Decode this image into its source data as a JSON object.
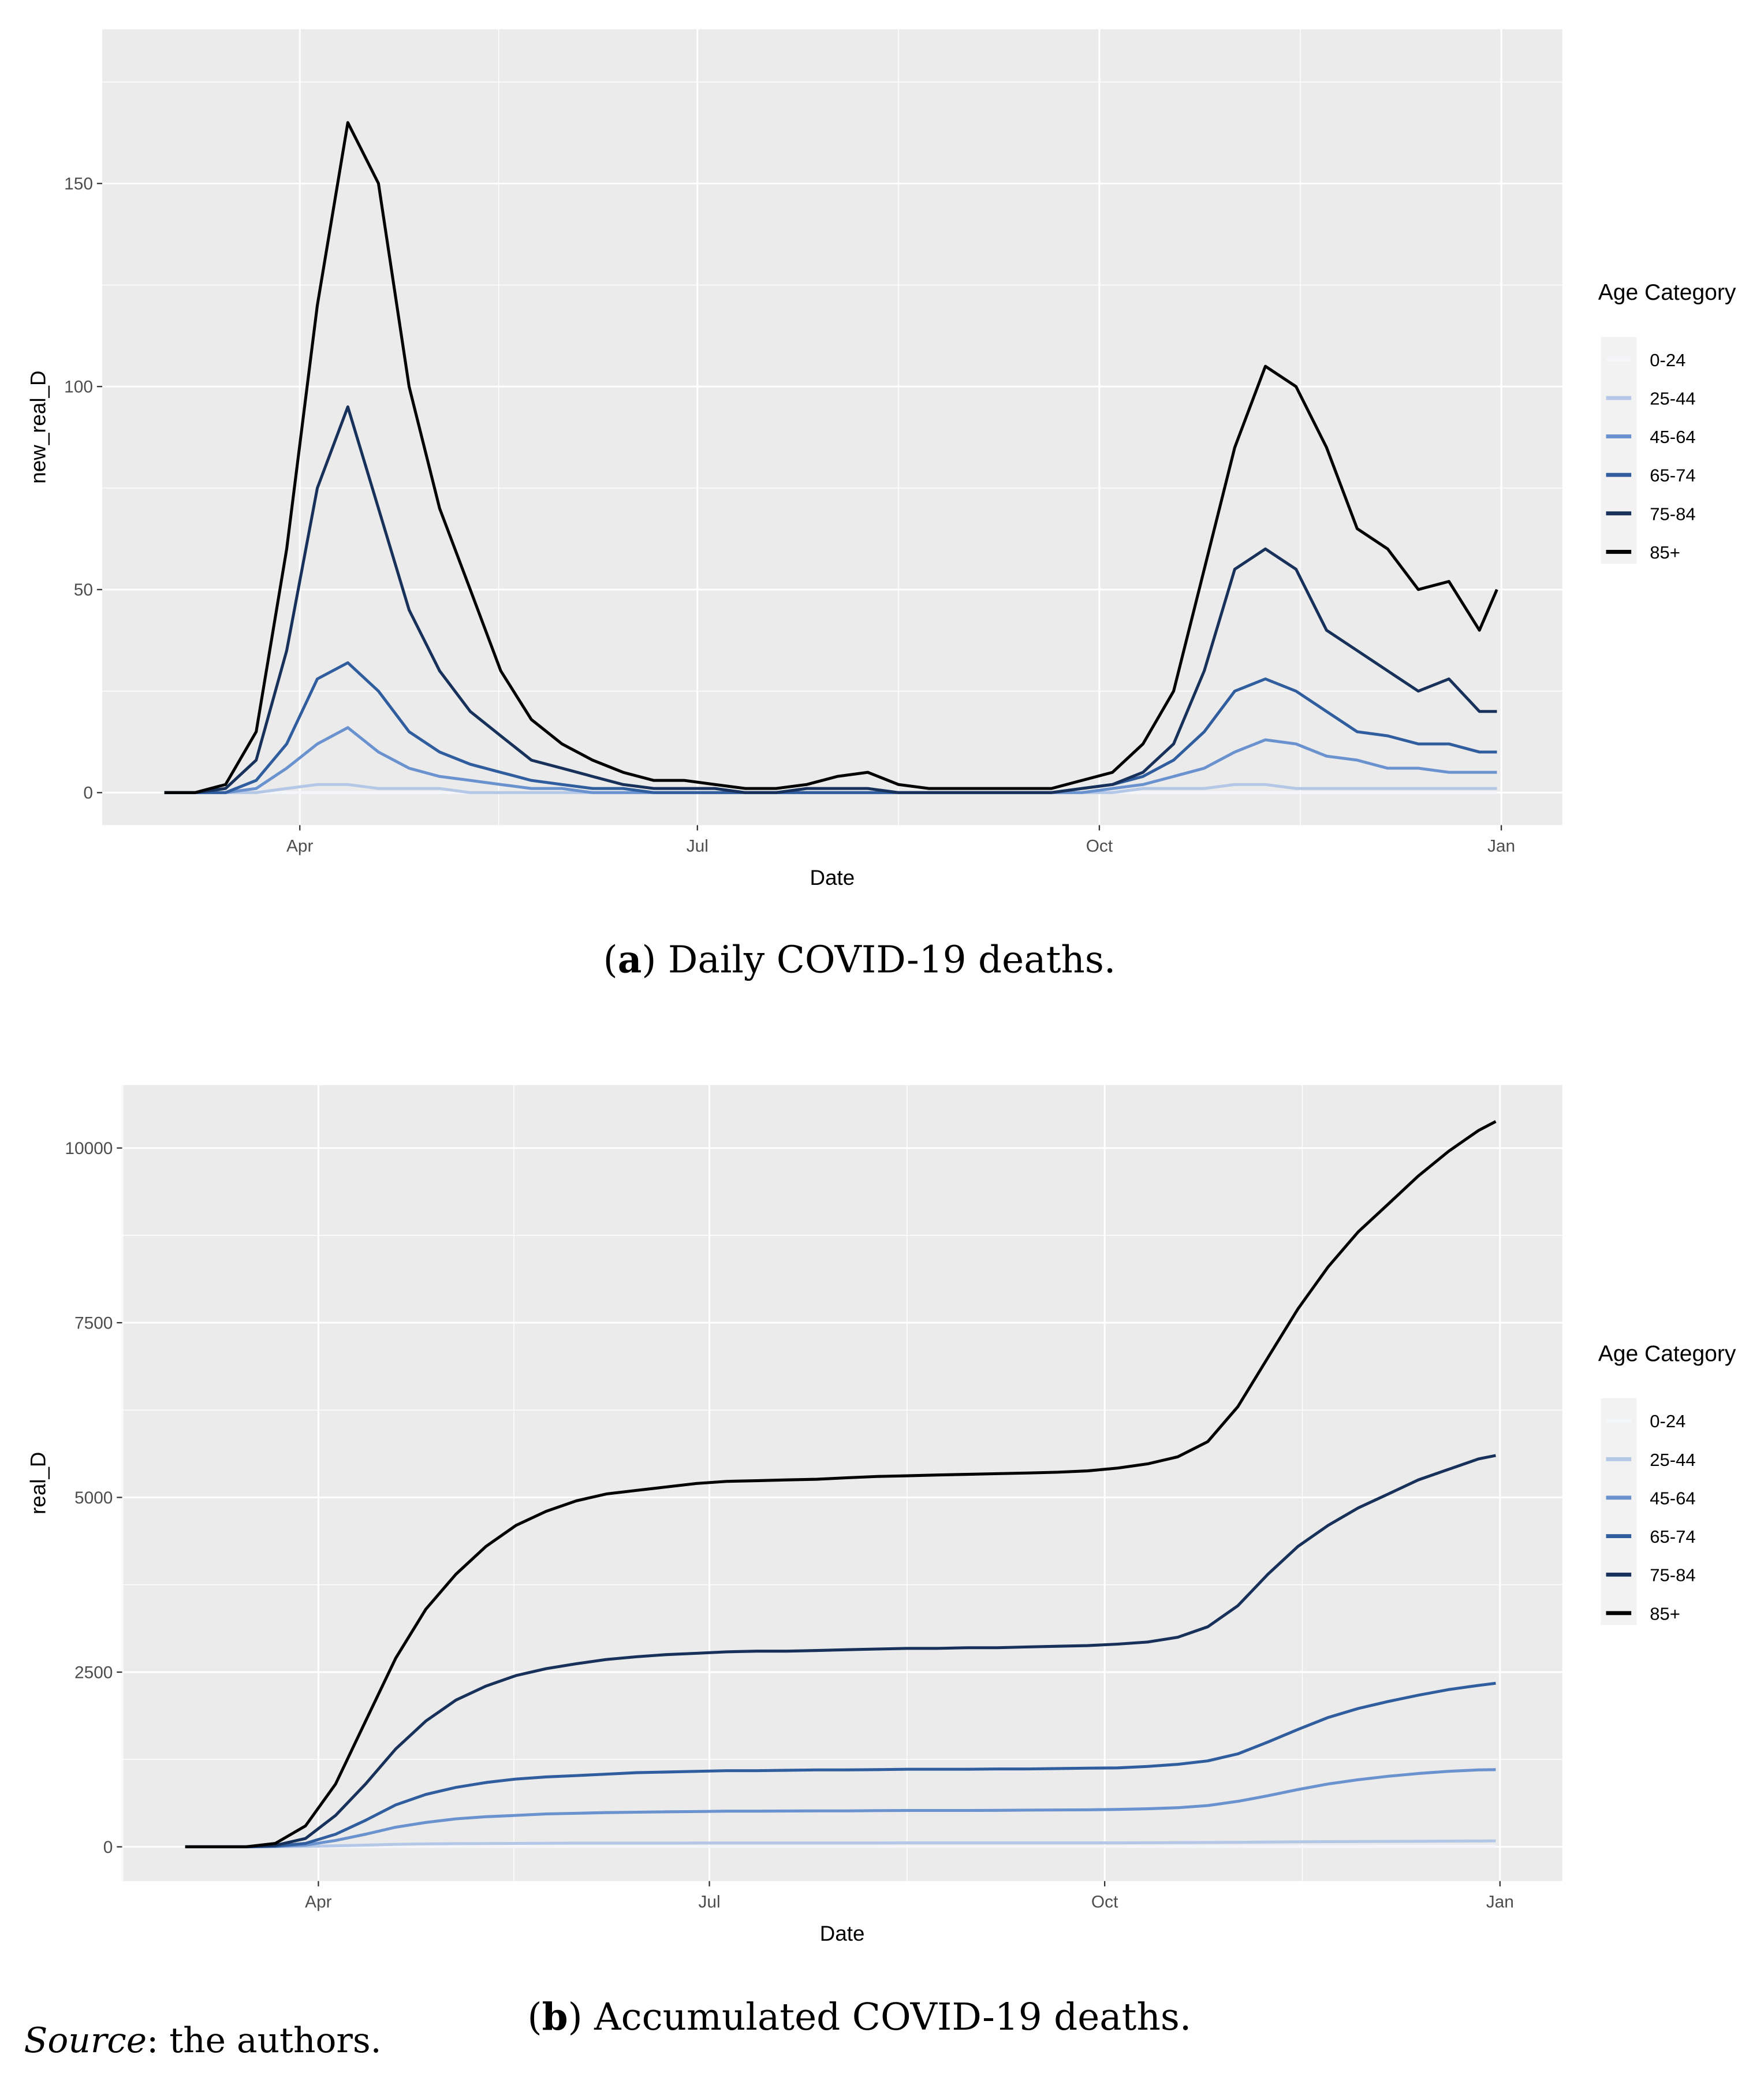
{
  "source_note": {
    "label": "Source",
    "text": ": the authors."
  },
  "colors": {
    "0-24": "#f4f6fa",
    "25-44": "#b4c7e7",
    "45-64": "#6a92cf",
    "65-74": "#2f5d9e",
    "75-84": "#17315a",
    "85+": "#000000",
    "panel": "#ebebeb",
    "grid": "#ffffff"
  },
  "chart_data": [
    {
      "type": "line",
      "caption_letter": "a",
      "caption_open": "(",
      "caption_close": ") Daily COVID-19 deaths.",
      "xlabel": "Date",
      "ylabel": "new_real_D",
      "yticks": [
        0,
        50,
        100,
        150
      ],
      "ylim": [
        -8,
        188
      ],
      "xticks": [
        {
          "date": "2020-04-01",
          "label": "Apr"
        },
        {
          "date": "2020-07-01",
          "label": "Jul"
        },
        {
          "date": "2020-10-01",
          "label": "Oct"
        },
        {
          "date": "2021-01-01",
          "label": "Jan"
        }
      ],
      "grid": true,
      "legend": {
        "title": "Age Category",
        "position": "right"
      },
      "x": [
        "2020-03-01",
        "2020-03-08",
        "2020-03-15",
        "2020-03-22",
        "2020-03-29",
        "2020-04-05",
        "2020-04-12",
        "2020-04-19",
        "2020-04-26",
        "2020-05-03",
        "2020-05-10",
        "2020-05-17",
        "2020-05-24",
        "2020-05-31",
        "2020-06-07",
        "2020-06-14",
        "2020-06-21",
        "2020-06-28",
        "2020-07-05",
        "2020-07-12",
        "2020-07-19",
        "2020-07-26",
        "2020-08-02",
        "2020-08-09",
        "2020-08-16",
        "2020-08-23",
        "2020-08-30",
        "2020-09-06",
        "2020-09-13",
        "2020-09-20",
        "2020-09-27",
        "2020-10-04",
        "2020-10-11",
        "2020-10-18",
        "2020-10-25",
        "2020-11-01",
        "2020-11-08",
        "2020-11-15",
        "2020-11-22",
        "2020-11-29",
        "2020-12-06",
        "2020-12-13",
        "2020-12-20",
        "2020-12-27",
        "2020-12-31"
      ],
      "series": [
        {
          "name": "0-24",
          "values": [
            0,
            0,
            0,
            0,
            0,
            0,
            0,
            0,
            0,
            0,
            0,
            0,
            0,
            0,
            0,
            0,
            0,
            0,
            0,
            0,
            0,
            0,
            0,
            0,
            0,
            0,
            0,
            0,
            0,
            0,
            0,
            0,
            0,
            0,
            0,
            0,
            0,
            0,
            0,
            0,
            0,
            0,
            0,
            0,
            0
          ]
        },
        {
          "name": "25-44",
          "values": [
            0,
            0,
            0,
            0,
            1,
            2,
            2,
            1,
            1,
            1,
            0,
            0,
            0,
            0,
            0,
            0,
            0,
            0,
            0,
            0,
            0,
            0,
            0,
            0,
            0,
            0,
            0,
            0,
            0,
            0,
            0,
            0,
            1,
            1,
            1,
            2,
            2,
            1,
            1,
            1,
            1,
            1,
            1,
            1,
            1
          ]
        },
        {
          "name": "45-64",
          "values": [
            0,
            0,
            0,
            1,
            6,
            12,
            16,
            10,
            6,
            4,
            3,
            2,
            1,
            1,
            0,
            0,
            0,
            0,
            0,
            0,
            0,
            0,
            0,
            0,
            0,
            0,
            0,
            0,
            0,
            0,
            0,
            1,
            2,
            4,
            6,
            10,
            13,
            12,
            9,
            8,
            6,
            6,
            5,
            5,
            5
          ]
        },
        {
          "name": "65-74",
          "values": [
            0,
            0,
            0,
            3,
            12,
            28,
            32,
            25,
            15,
            10,
            7,
            5,
            3,
            2,
            1,
            1,
            0,
            0,
            0,
            0,
            0,
            0,
            0,
            0,
            0,
            0,
            0,
            0,
            0,
            0,
            1,
            2,
            4,
            8,
            15,
            25,
            28,
            25,
            20,
            15,
            14,
            12,
            12,
            10,
            10
          ]
        },
        {
          "name": "75-84",
          "values": [
            0,
            0,
            1,
            8,
            35,
            75,
            95,
            70,
            45,
            30,
            20,
            14,
            8,
            6,
            4,
            2,
            1,
            1,
            1,
            0,
            0,
            1,
            1,
            1,
            0,
            0,
            0,
            0,
            0,
            0,
            1,
            2,
            5,
            12,
            30,
            55,
            60,
            55,
            40,
            35,
            30,
            25,
            28,
            20,
            20
          ]
        },
        {
          "name": "85+",
          "values": [
            0,
            0,
            2,
            15,
            60,
            120,
            165,
            150,
            100,
            70,
            50,
            30,
            18,
            12,
            8,
            5,
            3,
            3,
            2,
            1,
            1,
            2,
            4,
            5,
            2,
            1,
            1,
            1,
            1,
            1,
            3,
            5,
            12,
            25,
            55,
            85,
            105,
            100,
            85,
            65,
            60,
            50,
            52,
            40,
            50
          ]
        }
      ]
    },
    {
      "type": "line",
      "caption_letter": "b",
      "caption_open": "(",
      "caption_close": ") Accumulated COVID-19 deaths.",
      "xlabel": "Date",
      "ylabel": "real_D",
      "yticks": [
        0,
        2500,
        5000,
        7500,
        10000
      ],
      "ytick_labels": [
        "0",
        "2500",
        "5000",
        "7500",
        "10000"
      ],
      "ylim": [
        -490,
        10900
      ],
      "xticks": [
        {
          "date": "2020-04-01",
          "label": "Apr"
        },
        {
          "date": "2020-07-01",
          "label": "Jul"
        },
        {
          "date": "2020-10-01",
          "label": "Oct"
        },
        {
          "date": "2021-01-01",
          "label": "Jan"
        }
      ],
      "grid": true,
      "legend": {
        "title": "Age Category",
        "position": "right"
      },
      "x": [
        "2020-03-01",
        "2020-03-08",
        "2020-03-15",
        "2020-03-22",
        "2020-03-29",
        "2020-04-05",
        "2020-04-12",
        "2020-04-19",
        "2020-04-26",
        "2020-05-03",
        "2020-05-10",
        "2020-05-17",
        "2020-05-24",
        "2020-05-31",
        "2020-06-07",
        "2020-06-14",
        "2020-06-21",
        "2020-06-28",
        "2020-07-05",
        "2020-07-12",
        "2020-07-19",
        "2020-07-26",
        "2020-08-02",
        "2020-08-09",
        "2020-08-16",
        "2020-08-23",
        "2020-08-30",
        "2020-09-06",
        "2020-09-13",
        "2020-09-20",
        "2020-09-27",
        "2020-10-04",
        "2020-10-11",
        "2020-10-18",
        "2020-10-25",
        "2020-11-01",
        "2020-11-08",
        "2020-11-15",
        "2020-11-22",
        "2020-11-29",
        "2020-12-06",
        "2020-12-13",
        "2020-12-20",
        "2020-12-27",
        "2020-12-31"
      ],
      "series": [
        {
          "name": "0-24",
          "values": [
            0,
            0,
            0,
            0,
            0,
            1,
            2,
            3,
            3,
            3,
            3,
            3,
            3,
            3,
            3,
            3,
            3,
            3,
            3,
            3,
            3,
            3,
            3,
            3,
            3,
            3,
            3,
            3,
            3,
            3,
            3,
            3,
            3,
            3,
            3,
            4,
            4,
            4,
            4,
            4,
            5,
            5,
            5,
            5,
            5
          ]
        },
        {
          "name": "25-44",
          "values": [
            0,
            0,
            0,
            1,
            5,
            15,
            25,
            35,
            42,
            46,
            48,
            50,
            51,
            52,
            52,
            53,
            53,
            54,
            54,
            54,
            55,
            55,
            55,
            55,
            56,
            56,
            56,
            56,
            57,
            57,
            57,
            57,
            58,
            60,
            62,
            65,
            68,
            71,
            74,
            76,
            78,
            80,
            82,
            84,
            85
          ]
        },
        {
          "name": "45-64",
          "values": [
            0,
            0,
            0,
            5,
            25,
            90,
            180,
            280,
            350,
            400,
            430,
            450,
            470,
            480,
            490,
            495,
            500,
            505,
            510,
            510,
            512,
            515,
            515,
            518,
            520,
            520,
            520,
            522,
            525,
            528,
            530,
            535,
            545,
            560,
            590,
            650,
            730,
            820,
            900,
            960,
            1010,
            1050,
            1080,
            1100,
            1105
          ]
        },
        {
          "name": "65-74",
          "values": [
            0,
            0,
            0,
            10,
            50,
            180,
            380,
            600,
            750,
            850,
            920,
            970,
            1000,
            1020,
            1040,
            1060,
            1070,
            1080,
            1090,
            1090,
            1095,
            1100,
            1100,
            1105,
            1110,
            1110,
            1110,
            1115,
            1115,
            1120,
            1125,
            1130,
            1150,
            1180,
            1230,
            1330,
            1500,
            1680,
            1850,
            1980,
            2080,
            2170,
            2250,
            2310,
            2340
          ]
        },
        {
          "name": "75-84",
          "values": [
            0,
            0,
            0,
            20,
            120,
            450,
            900,
            1400,
            1800,
            2100,
            2300,
            2450,
            2550,
            2620,
            2680,
            2720,
            2750,
            2770,
            2790,
            2800,
            2800,
            2810,
            2820,
            2830,
            2840,
            2840,
            2850,
            2850,
            2860,
            2870,
            2880,
            2900,
            2930,
            3000,
            3150,
            3450,
            3900,
            4300,
            4600,
            4850,
            5050,
            5250,
            5400,
            5550,
            5600
          ]
        },
        {
          "name": "85+",
          "values": [
            0,
            0,
            0,
            50,
            300,
            900,
            1800,
            2700,
            3400,
            3900,
            4300,
            4600,
            4800,
            4950,
            5050,
            5100,
            5150,
            5200,
            5230,
            5240,
            5250,
            5260,
            5280,
            5300,
            5310,
            5320,
            5330,
            5340,
            5350,
            5360,
            5380,
            5420,
            5480,
            5580,
            5800,
            6300,
            7000,
            7700,
            8300,
            8800,
            9200,
            9600,
            9950,
            10250,
            10380
          ]
        }
      ]
    }
  ]
}
